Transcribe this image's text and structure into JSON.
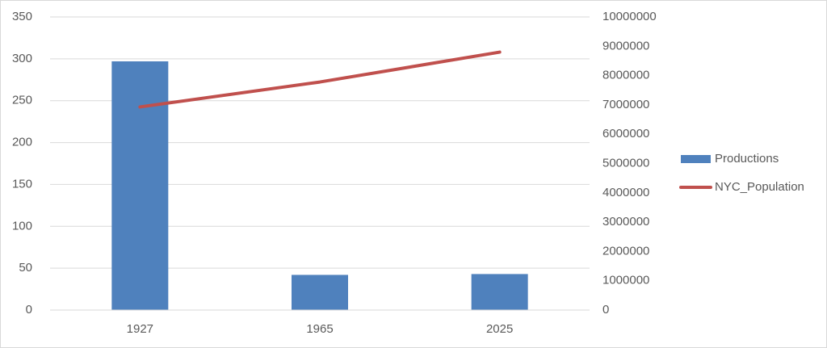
{
  "chart_data": {
    "type": "bar",
    "categories": [
      "1927",
      "1965",
      "2025"
    ],
    "series": [
      {
        "name": "Productions",
        "type": "bar",
        "color": "#4f81bd",
        "values": [
          297,
          42,
          43
        ]
      },
      {
        "name": "NYC_Population",
        "type": "line",
        "axis": "y2",
        "color": "#c0504d",
        "values": [
          6930000,
          7780000,
          8800000
        ]
      }
    ],
    "ylim": [
      0,
      350
    ],
    "yticks": [
      0,
      50,
      100,
      150,
      200,
      250,
      300,
      350
    ],
    "y2lim": [
      0,
      10000000
    ],
    "y2ticks": [
      0,
      1000000,
      2000000,
      3000000,
      4000000,
      5000000,
      6000000,
      7000000,
      8000000,
      9000000,
      10000000
    ],
    "grid": true,
    "legend": "right"
  }
}
